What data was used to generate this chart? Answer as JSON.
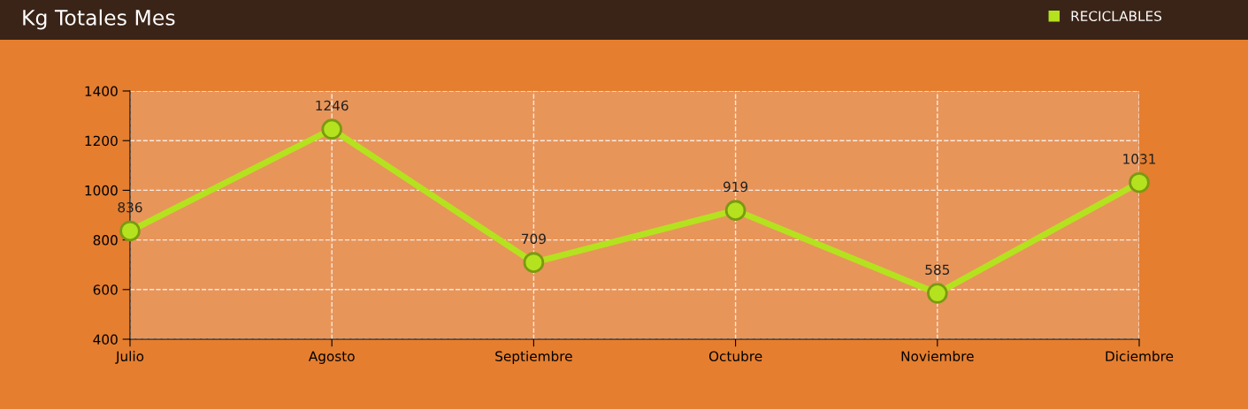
{
  "chart_data": {
    "type": "line",
    "title": "Kg Totales Mes",
    "categories": [
      "Julio",
      "Agosto",
      "Septiembre",
      "Octubre",
      "Noviembre",
      "Diciembre"
    ],
    "series": [
      {
        "name": "RECICLABLES",
        "color": "#b5e21e",
        "values": [
          836,
          1246,
          709,
          919,
          585,
          1031
        ]
      }
    ],
    "ylim": [
      400,
      1400
    ],
    "yticks": [
      400,
      600,
      800,
      1000,
      1200,
      1400
    ],
    "grid": true,
    "legend": "top right",
    "marker": "circle",
    "line_style": "solid",
    "data_labels": true
  }
}
